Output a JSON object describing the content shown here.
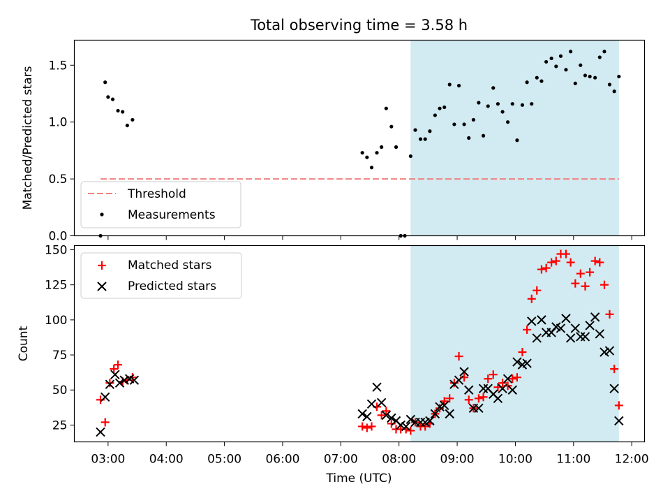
{
  "title": "Total observing time = 3.58 h",
  "xlabel": "Time (UTC)",
  "x_ticks": [
    "03:00",
    "04:00",
    "05:00",
    "06:00",
    "07:00",
    "08:00",
    "09:00",
    "10:00",
    "11:00",
    "12:00"
  ],
  "x_range_hours": [
    2.42,
    12.22
  ],
  "highlight_span_hours": [
    8.2,
    11.78
  ],
  "chart_data": [
    {
      "type": "scatter",
      "ylabel": "Matched/Predicted stars",
      "ylim": [
        0,
        1.72
      ],
      "y_ticks": [
        0.0,
        0.5,
        1.0,
        1.5
      ],
      "legend": "lower-left",
      "threshold": {
        "name": "Threshold",
        "y": 0.5,
        "x_range_hours": [
          2.87,
          11.78
        ],
        "color": "#f08080"
      },
      "series": [
        {
          "name": "Measurements",
          "color": "#000000",
          "x": [
            2.87,
            2.95,
            3.0,
            3.08,
            3.17,
            3.25,
            3.33,
            3.42,
            7.37,
            7.45,
            7.53,
            7.62,
            7.7,
            7.78,
            7.87,
            7.95,
            8.03,
            8.1,
            8.2,
            8.28,
            8.37,
            8.45,
            8.53,
            8.62,
            8.7,
            8.78,
            8.87,
            8.95,
            9.03,
            9.12,
            9.2,
            9.28,
            9.37,
            9.45,
            9.53,
            9.62,
            9.7,
            9.78,
            9.87,
            9.95,
            10.03,
            10.12,
            10.2,
            10.28,
            10.37,
            10.45,
            10.53,
            10.62,
            10.7,
            10.78,
            10.87,
            10.95,
            11.03,
            11.12,
            11.2,
            11.28,
            11.37,
            11.45,
            11.53,
            11.62,
            11.7,
            11.78
          ],
          "y": [
            0.0,
            1.35,
            1.22,
            1.2,
            1.1,
            1.09,
            0.97,
            1.02,
            0.73,
            0.69,
            0.6,
            0.73,
            0.78,
            1.12,
            0.96,
            0.78,
            0.0,
            0.0,
            0.7,
            0.93,
            0.85,
            0.85,
            0.92,
            1.06,
            1.12,
            1.13,
            1.33,
            0.98,
            1.32,
            0.98,
            0.86,
            1.02,
            1.17,
            0.88,
            1.14,
            1.3,
            1.16,
            1.09,
            1.0,
            1.16,
            0.84,
            1.15,
            1.35,
            1.16,
            1.39,
            1.36,
            1.53,
            1.56,
            1.49,
            1.58,
            1.46,
            1.62,
            1.34,
            1.5,
            1.41,
            1.4,
            1.39,
            1.57,
            1.62,
            1.33,
            1.27,
            1.4
          ]
        }
      ]
    },
    {
      "type": "scatter",
      "ylabel": "Count",
      "ylim": [
        13,
        153
      ],
      "y_ticks": [
        25,
        50,
        75,
        100,
        125,
        150
      ],
      "legend": "upper-left",
      "series": [
        {
          "name": "Matched stars",
          "color": "#ff0000",
          "marker": "+",
          "x": [
            2.87,
            2.95,
            3.03,
            3.1,
            3.17,
            3.25,
            3.33,
            3.42,
            7.37,
            7.45,
            7.53,
            7.62,
            7.7,
            7.78,
            7.87,
            7.95,
            8.03,
            8.12,
            8.2,
            8.28,
            8.37,
            8.45,
            8.53,
            8.62,
            8.7,
            8.78,
            8.87,
            8.95,
            9.03,
            9.12,
            9.2,
            9.28,
            9.37,
            9.45,
            9.53,
            9.62,
            9.7,
            9.78,
            9.87,
            9.95,
            10.03,
            10.12,
            10.2,
            10.28,
            10.37,
            10.45,
            10.53,
            10.62,
            10.7,
            10.78,
            10.87,
            10.95,
            11.03,
            11.12,
            11.2,
            11.28,
            11.37,
            11.45,
            11.53,
            11.62,
            11.7,
            11.78
          ],
          "y": [
            43,
            27,
            55,
            65,
            68,
            56,
            57,
            59,
            24,
            23,
            24,
            38,
            32,
            35,
            26,
            22,
            22,
            22,
            21,
            27,
            24,
            24,
            26,
            33,
            37,
            42,
            44,
            55,
            74,
            59,
            43,
            37,
            44,
            45,
            58,
            61,
            52,
            55,
            53,
            58,
            59,
            77,
            93,
            115,
            121,
            136,
            137,
            141,
            142,
            147,
            147,
            141,
            126,
            133,
            124,
            134,
            142,
            141,
            125,
            104,
            65,
            39
          ]
        },
        {
          "name": "Predicted stars",
          "color": "#000000",
          "marker": "x",
          "x": [
            2.87,
            2.95,
            3.03,
            3.12,
            3.2,
            3.28,
            3.37,
            3.45,
            7.37,
            7.45,
            7.53,
            7.62,
            7.7,
            7.78,
            7.87,
            7.95,
            8.03,
            8.12,
            8.2,
            8.28,
            8.37,
            8.45,
            8.53,
            8.62,
            8.7,
            8.78,
            8.87,
            8.95,
            9.03,
            9.12,
            9.2,
            9.28,
            9.37,
            9.45,
            9.53,
            9.62,
            9.7,
            9.78,
            9.87,
            9.95,
            10.03,
            10.12,
            10.2,
            10.28,
            10.37,
            10.45,
            10.53,
            10.62,
            10.7,
            10.78,
            10.87,
            10.95,
            11.03,
            11.12,
            11.2,
            11.28,
            11.37,
            11.45,
            11.53,
            11.62,
            11.7,
            11.78
          ],
          "y": [
            20,
            45,
            54,
            61,
            55,
            57,
            58,
            57,
            33,
            31,
            40,
            52,
            41,
            32,
            30,
            28,
            25,
            24,
            29,
            27,
            27,
            27,
            28,
            33,
            38,
            39,
            33,
            54,
            57,
            63,
            50,
            37,
            37,
            51,
            51,
            47,
            44,
            51,
            58,
            50,
            70,
            68,
            69,
            99,
            87,
            100,
            91,
            91,
            95,
            94,
            101,
            87,
            94,
            88,
            88,
            96,
            102,
            90,
            77,
            78,
            51,
            28
          ]
        }
      ]
    }
  ]
}
